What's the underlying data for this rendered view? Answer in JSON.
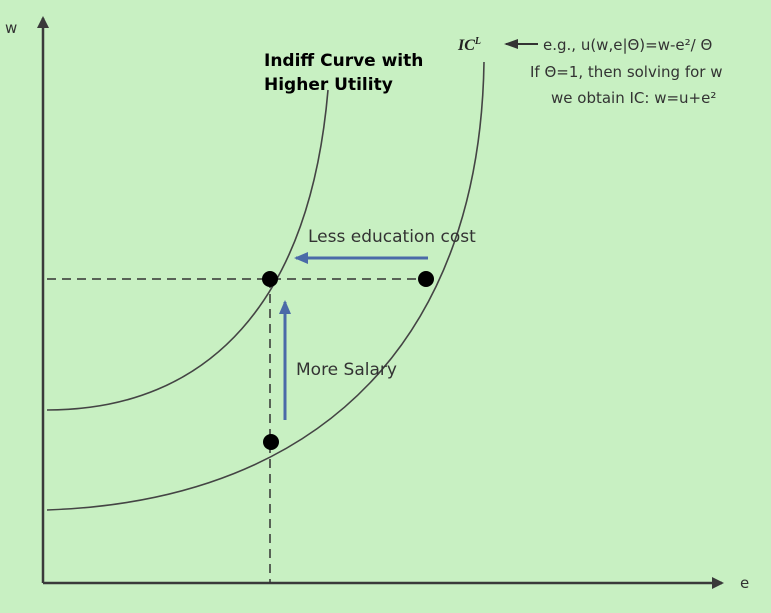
{
  "axes": {
    "y_label": "w",
    "x_label": "e"
  },
  "curves": {
    "upper_label_line1": "Indiff Curve with",
    "upper_label_line2": "Higher Utility",
    "ic_label": "IC",
    "ic_superscript": "L"
  },
  "annotation": {
    "line1": "e.g., u(w,e|Θ)=w-e²/ Θ",
    "line2": "If Θ=1, then solving for w",
    "line3": "we obtain IC: w=u+e²"
  },
  "arrows": {
    "horizontal_label": "Less education cost",
    "vertical_label": "More Salary"
  },
  "colors": {
    "background": "#c8f0c2",
    "arrow_blue": "#4a6aa8",
    "ink": "#333333"
  }
}
